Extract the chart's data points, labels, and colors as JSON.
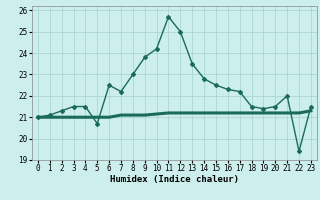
{
  "xlabel": "Humidex (Indice chaleur)",
  "bg_color": "#cceeed",
  "line_color": "#1a6b5a",
  "grid_color": "#aad8d0",
  "xlim": [
    -0.5,
    23.5
  ],
  "ylim": [
    19,
    26.2
  ],
  "yticks": [
    19,
    20,
    21,
    22,
    23,
    24,
    25,
    26
  ],
  "xticks": [
    0,
    1,
    2,
    3,
    4,
    5,
    6,
    7,
    8,
    9,
    10,
    11,
    12,
    13,
    14,
    15,
    16,
    17,
    18,
    19,
    20,
    21,
    22,
    23
  ],
  "curve1_x": [
    0,
    1,
    2,
    3,
    4,
    5,
    6,
    7,
    8,
    9,
    10,
    11,
    12,
    13,
    14,
    15,
    16,
    17,
    18,
    19,
    20,
    21,
    22,
    23
  ],
  "curve1_y": [
    21.0,
    21.1,
    21.3,
    21.5,
    21.5,
    20.7,
    22.5,
    22.2,
    23.0,
    23.8,
    24.2,
    25.7,
    25.0,
    23.5,
    22.8,
    22.5,
    22.3,
    22.2,
    21.5,
    21.4,
    21.5,
    22.0,
    19.4,
    21.5
  ],
  "curve2_x": [
    0,
    1,
    2,
    3,
    4,
    5,
    6,
    7,
    8,
    9,
    10,
    11,
    12,
    13,
    14,
    15,
    16,
    17,
    18,
    19,
    20,
    21,
    22,
    23
  ],
  "curve2_y": [
    21.0,
    21.0,
    21.0,
    21.0,
    21.0,
    21.0,
    21.0,
    21.1,
    21.1,
    21.1,
    21.15,
    21.2,
    21.2,
    21.2,
    21.2,
    21.2,
    21.2,
    21.2,
    21.2,
    21.2,
    21.2,
    21.2,
    21.2,
    21.3
  ],
  "fontsize_axis": 6.5,
  "fontsize_ticks": 5.5
}
